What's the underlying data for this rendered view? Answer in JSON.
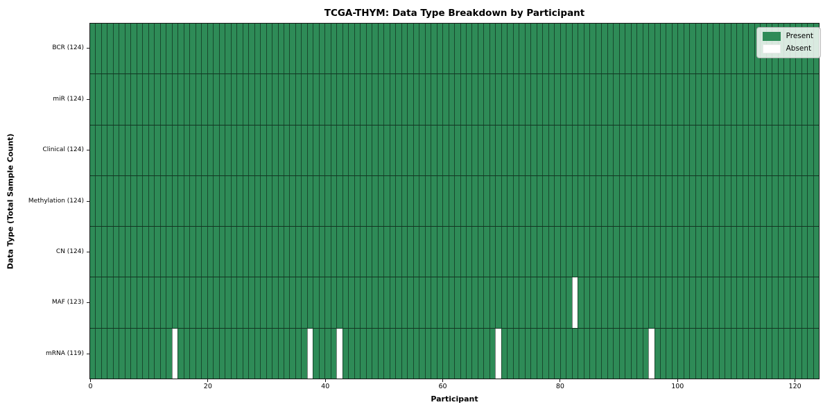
{
  "chart_data": {
    "type": "heatmap",
    "title": "TCGA-THYM: Data Type Breakdown by Participant",
    "xlabel": "Participant",
    "ylabel": "Data Type (Total Sample Count)",
    "n_participants": 124,
    "xlim": [
      0,
      124
    ],
    "x_ticks": [
      0,
      20,
      40,
      60,
      80,
      100,
      120
    ],
    "grid": false,
    "rows": [
      {
        "label": "BCR (124)",
        "data_type": "BCR",
        "present_count": 124,
        "absent_participants": []
      },
      {
        "label": "miR (124)",
        "data_type": "miR",
        "present_count": 124,
        "absent_participants": []
      },
      {
        "label": "Clinical (124)",
        "data_type": "Clinical",
        "present_count": 124,
        "absent_participants": []
      },
      {
        "label": "Methylation (124)",
        "data_type": "Methylation",
        "present_count": 124,
        "absent_participants": []
      },
      {
        "label": "CN (124)",
        "data_type": "CN",
        "present_count": 124,
        "absent_participants": []
      },
      {
        "label": "MAF (123)",
        "data_type": "MAF",
        "present_count": 123,
        "absent_participants": [
          82
        ]
      },
      {
        "label": "mRNA (119)",
        "data_type": "mRNA",
        "present_count": 119,
        "absent_participants": [
          14,
          37,
          42,
          69,
          95
        ]
      }
    ],
    "legend": {
      "position": "upper right",
      "entries": [
        {
          "label": "Present",
          "color": "#2e8b57"
        },
        {
          "label": "Absent",
          "color": "#ffffff"
        }
      ]
    },
    "colors": {
      "present": "#2e8b57",
      "absent": "#ffffff"
    }
  }
}
